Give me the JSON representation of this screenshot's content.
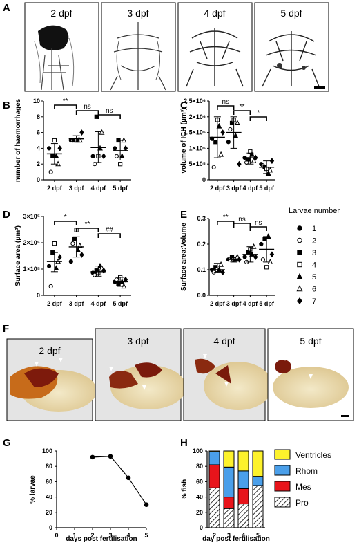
{
  "panel_labels": {
    "A": "A",
    "B": "B",
    "C": "C",
    "D": "D",
    "E": "E",
    "F": "F",
    "G": "G",
    "H": "H"
  },
  "panel_A": {
    "headers": [
      "2 dpf",
      "3 dpf",
      "4 dpf",
      "5 dpf"
    ]
  },
  "panel_F": {
    "headers": [
      "2 dpf",
      "3 dpf",
      "4 dpf",
      "5 dpf"
    ]
  },
  "legend": {
    "title": "Larvae number",
    "items": [
      {
        "label": "1",
        "marker": "circle-filled"
      },
      {
        "label": "2",
        "marker": "circle-open"
      },
      {
        "label": "3",
        "marker": "square-filled"
      },
      {
        "label": "4",
        "marker": "square-open"
      },
      {
        "label": "5",
        "marker": "triangle-filled"
      },
      {
        "label": "6",
        "marker": "triangle-open"
      },
      {
        "label": "7",
        "marker": "diamond-filled"
      }
    ]
  },
  "chart_data": [
    {
      "panel": "B",
      "type": "scatter",
      "categories": [
        "2 dpf",
        "3 dpf",
        "4 dpf",
        "5 dpf"
      ],
      "ylabel": "number of haemorrhages",
      "ylim": [
        0,
        10
      ],
      "yticks": [
        "0",
        "2",
        "4",
        "6",
        "8",
        "10"
      ],
      "series": [
        {
          "name": "1",
          "values": [
            4,
            5,
            3,
            4
          ]
        },
        {
          "name": "2",
          "values": [
            1,
            5,
            2,
            3
          ]
        },
        {
          "name": "3",
          "values": [
            3,
            5,
            8,
            5
          ]
        },
        {
          "name": "4",
          "values": [
            5,
            5,
            3,
            2
          ]
        },
        {
          "name": "5",
          "values": [
            3,
            5,
            4,
            3
          ]
        },
        {
          "name": "6",
          "values": [
            2,
            5,
            6,
            5
          ]
        },
        {
          "name": "7",
          "values": [
            4,
            6,
            3,
            4
          ]
        }
      ],
      "mean": [
        3.3,
        5.2,
        4.1,
        3.7
      ],
      "sd_low": [
        2.0,
        4.9,
        2.2,
        2.5
      ],
      "sd_high": [
        4.6,
        5.6,
        6.1,
        5.0
      ],
      "significance": [
        {
          "from": 0,
          "to": 1,
          "label": "**"
        },
        {
          "from": 1,
          "to": 2,
          "label": "ns"
        },
        {
          "from": 2,
          "to": 3,
          "label": "ns"
        }
      ]
    },
    {
      "panel": "C",
      "type": "scatter",
      "categories": [
        "2 dpf",
        "3 dpf",
        "4 dpf",
        "5 dpf"
      ],
      "ylabel": "volume of ICH (μm³)",
      "ylim": [
        0,
        2500000
      ],
      "yticks": [
        "0",
        "5×10⁵",
        "1×10⁶",
        "1.5×10⁶",
        "2×10⁶",
        "2.5×10⁶"
      ],
      "series": [
        {
          "name": "1",
          "values": [
            1300000,
            1200000,
            700000,
            500000
          ]
        },
        {
          "name": "2",
          "values": [
            400000,
            1600000,
            550000,
            450000
          ]
        },
        {
          "name": "3",
          "values": [
            1200000,
            1800000,
            650000,
            400000
          ]
        },
        {
          "name": "4",
          "values": [
            1900000,
            1900000,
            900000,
            350000
          ]
        },
        {
          "name": "5",
          "values": [
            1700000,
            1400000,
            800000,
            200000
          ]
        },
        {
          "name": "6",
          "values": [
            800000,
            1800000,
            600000,
            300000
          ]
        },
        {
          "name": "7",
          "values": [
            1500000,
            500000,
            700000,
            600000
          ]
        }
      ],
      "mean": [
        1350000,
        1500000,
        700000,
        400000
      ],
      "sd_low": [
        700000,
        1000000,
        500000,
        200000
      ],
      "sd_high": [
        2000000,
        2000000,
        850000,
        600000
      ],
      "significance": [
        {
          "from": 0,
          "to": 1,
          "label": "ns"
        },
        {
          "from": 1,
          "to": 2,
          "label": "**"
        },
        {
          "from": 2,
          "to": 3,
          "label": "*"
        }
      ]
    },
    {
      "panel": "D",
      "type": "scatter",
      "categories": [
        "2 dpf",
        "3 dpf",
        "4 dpf",
        "5 dpf"
      ],
      "ylabel": "Surface area (μm²)",
      "ylim": [
        0,
        350000
      ],
      "yticks": [
        "0",
        "1×10⁵",
        "2×10⁵",
        "3×10⁵"
      ],
      "series": [
        {
          "name": "1",
          "values": [
            130000,
            150000,
            100000,
            60000
          ]
        },
        {
          "name": "2",
          "values": [
            40000,
            230000,
            90000,
            70000
          ]
        },
        {
          "name": "3",
          "values": [
            190000,
            250000,
            110000,
            50000
          ]
        },
        {
          "name": "4",
          "values": [
            230000,
            290000,
            100000,
            80000
          ]
        },
        {
          "name": "5",
          "values": [
            120000,
            200000,
            130000,
            60000
          ]
        },
        {
          "name": "6",
          "values": [
            150000,
            220000,
            120000,
            40000
          ]
        },
        {
          "name": "7",
          "values": [
            170000,
            180000,
            110000,
            70000
          ]
        }
      ],
      "mean": [
        150000,
        215000,
        105000,
        60000
      ],
      "sd_low": [
        105000,
        170000,
        85000,
        40000
      ],
      "sd_high": [
        190000,
        260000,
        130000,
        80000
      ],
      "significance": [
        {
          "from": 0,
          "to": 1,
          "label": "*"
        },
        {
          "from": 1,
          "to": 2,
          "label": "**"
        },
        {
          "from": 2,
          "to": 3,
          "label": "##"
        }
      ]
    },
    {
      "panel": "E",
      "type": "scatter",
      "categories": [
        "2 dpf",
        "3 dpf",
        "4 dpf",
        "5 dpf"
      ],
      "ylabel": "Surface area:Volume",
      "ylim": [
        0,
        0.3
      ],
      "yticks": [
        "0.0",
        "0.1",
        "0.2",
        "0.3"
      ],
      "series": [
        {
          "name": "1",
          "values": [
            0.1,
            0.14,
            0.15,
            0.2
          ]
        },
        {
          "name": "2",
          "values": [
            0.09,
            0.14,
            0.13,
            0.14
          ]
        },
        {
          "name": "3",
          "values": [
            0.11,
            0.15,
            0.17,
            0.22
          ]
        },
        {
          "name": "4",
          "values": [
            0.1,
            0.14,
            0.18,
            0.11
          ]
        },
        {
          "name": "5",
          "values": [
            0.1,
            0.14,
            0.16,
            0.23
          ]
        },
        {
          "name": "6",
          "values": [
            0.12,
            0.15,
            0.19,
            0.13
          ]
        },
        {
          "name": "7",
          "values": [
            0.09,
            0.14,
            0.15,
            0.16
          ]
        }
      ],
      "mean": [
        0.1,
        0.14,
        0.16,
        0.18
      ],
      "sd_low": [
        0.09,
        0.13,
        0.13,
        0.13
      ],
      "sd_high": [
        0.125,
        0.15,
        0.19,
        0.23
      ],
      "significance": [
        {
          "from": 0,
          "to": 1,
          "label": "**"
        },
        {
          "from": 1,
          "to": 2,
          "label": "ns"
        },
        {
          "from": 2,
          "to": 3,
          "label": "ns"
        }
      ]
    },
    {
      "panel": "G",
      "type": "line",
      "x": [
        2,
        3,
        4,
        5
      ],
      "values": [
        92,
        93,
        65,
        30
      ],
      "xlabel": "days post fertilisation",
      "ylabel": "% larvae",
      "xlim": [
        0,
        5
      ],
      "ylim": [
        0,
        100
      ],
      "xticks": [
        "0",
        "1",
        "2",
        "3",
        "4",
        "5"
      ],
      "yticks": [
        "0",
        "20",
        "40",
        "60",
        "80",
        "100"
      ]
    },
    {
      "panel": "H",
      "type": "bar",
      "categories": [
        "2",
        "3",
        "4",
        "5"
      ],
      "xlabel": "day post fertilisation",
      "ylabel": "% fish",
      "ylim": [
        0,
        100
      ],
      "yticks": [
        "0",
        "20",
        "40",
        "60",
        "80",
        "100"
      ],
      "series": [
        {
          "name": "Pro",
          "values": [
            52,
            25,
            31,
            55
          ],
          "color": "#ffffff"
        },
        {
          "name": "Mes",
          "values": [
            30,
            15,
            20,
            0
          ],
          "color": "#e8141b"
        },
        {
          "name": "Rhom",
          "values": [
            17,
            39,
            23,
            12
          ],
          "color": "#4a9fea"
        },
        {
          "name": "Ventricles",
          "values": [
            1,
            21,
            26,
            33
          ],
          "color": "#fdf22c"
        }
      ],
      "legend_order": [
        "Ventricles",
        "Rhom",
        "Mes",
        "Pro"
      ]
    }
  ]
}
